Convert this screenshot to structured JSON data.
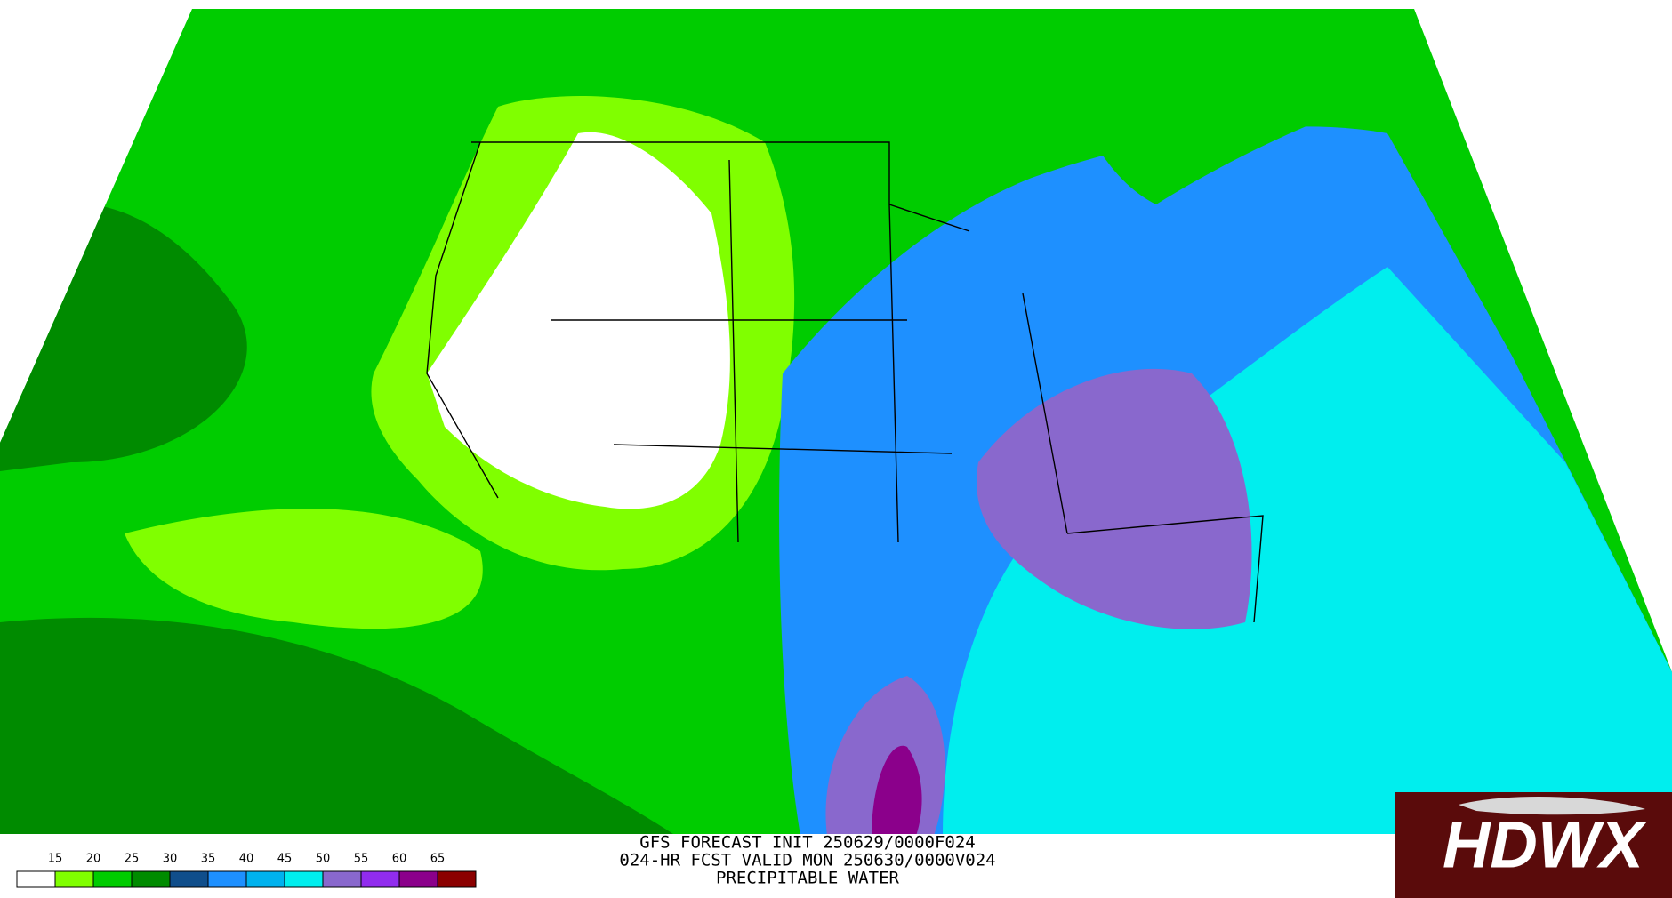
{
  "header": {
    "lines": [
      "GFS FORECAST INIT 250629/0000F024",
      "024-HR FCST VALID MON 250630/0000V024",
      "PRECIPITABLE WATER"
    ]
  },
  "legend": {
    "ticks": [
      15,
      20,
      25,
      30,
      35,
      40,
      45,
      50,
      55,
      60,
      65
    ],
    "colors": [
      "#ffffff",
      "#80ff00",
      "#00cc00",
      "#008b00",
      "#104e8b",
      "#1e90ff",
      "#00b2ee",
      "#00eeee",
      "#8968cd",
      "#912cee",
      "#8b008b",
      "#8b0000"
    ]
  },
  "logo": {
    "title": "HDWX"
  }
}
